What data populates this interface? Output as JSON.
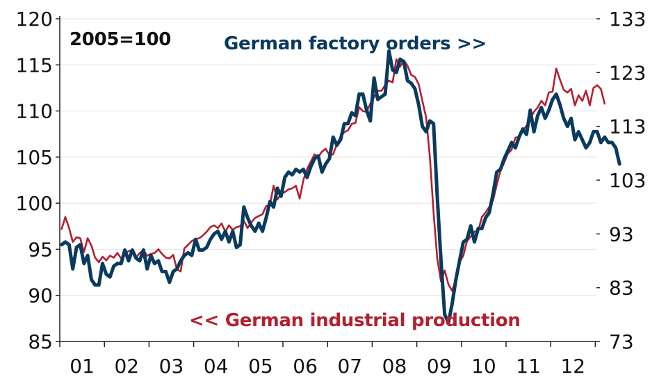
{
  "chart_data": {
    "type": "line",
    "annotations": {
      "base_note": "2005=100",
      "orders_label": "German factory orders >>",
      "ip_label": "<< German industrial production"
    },
    "x_tick_labels": [
      "01",
      "02",
      "03",
      "04",
      "05",
      "06",
      "07",
      "08",
      "09",
      "10",
      "11",
      "12"
    ],
    "x_start_year": 2001,
    "left_axis": {
      "ticks": [
        85,
        90,
        95,
        100,
        105,
        110,
        115,
        120
      ],
      "range": [
        85,
        120
      ]
    },
    "right_axis": {
      "ticks": [
        73,
        83,
        93,
        103,
        113,
        123,
        133
      ],
      "range": [
        73,
        133
      ]
    },
    "grid": "horizontal",
    "series": [
      {
        "name": "German factory orders",
        "axis": "right",
        "color": "#0b3a5f",
        "values": [
          91,
          91.5,
          91,
          86.5,
          90.5,
          91,
          87.5,
          89,
          84.5,
          83.5,
          83.5,
          87.5,
          85.5,
          85,
          87,
          87.5,
          87.5,
          90,
          88,
          90,
          88.5,
          88,
          90,
          86.5,
          89,
          87.5,
          88,
          86,
          86,
          84,
          86,
          86.5,
          88,
          89,
          89.5,
          89,
          92,
          90,
          90,
          90.5,
          92,
          93,
          93.5,
          92,
          93.5,
          91.5,
          93.5,
          90.5,
          91,
          98,
          96,
          94.5,
          93.5,
          95,
          93.5,
          96,
          99,
          98,
          101.5,
          100,
          103.5,
          104.5,
          104,
          105,
          104.5,
          105,
          103.5,
          105.5,
          107,
          107.5,
          104.5,
          106,
          107,
          111,
          109.5,
          110.5,
          113.5,
          113.5,
          115.5,
          115,
          119,
          119,
          116,
          114,
          122,
          118,
          118.5,
          119,
          127,
          123.5,
          123,
          125.5,
          125,
          121.5,
          121,
          120,
          117,
          113,
          112,
          114,
          113.5,
          100,
          88,
          78,
          76.5,
          80,
          84.5,
          88,
          91.5,
          92,
          94.5,
          91.5,
          94,
          94,
          96,
          97,
          100.5,
          104.5,
          105,
          107,
          108.5,
          110,
          109,
          111,
          112.5,
          111.5,
          116,
          112,
          115,
          116.5,
          114.5,
          116,
          118,
          119,
          117,
          114.5,
          113,
          114.5,
          110.5,
          112,
          110.5,
          109,
          110,
          112,
          112,
          110,
          111,
          110,
          110,
          109,
          106
        ]
      },
      {
        "name": "German industrial production",
        "axis": "left",
        "color": "#b22030",
        "values": [
          97.2,
          98.5,
          97.3,
          95.8,
          96.3,
          96.2,
          94.7,
          96.2,
          95.4,
          94.1,
          93.6,
          94.2,
          93.8,
          94.3,
          94.1,
          94.6,
          94,
          94.5,
          94.8,
          94.9,
          94.1,
          94.6,
          94.9,
          94.3,
          94.5,
          94.6,
          95,
          94.5,
          94.1,
          94,
          94.4,
          92.8,
          92.6,
          95.1,
          95.5,
          95.9,
          96.1,
          96.2,
          96.5,
          96.9,
          97.4,
          97.6,
          97.3,
          97.8,
          96.9,
          97.6,
          97.1,
          97.4,
          97.5,
          98.1,
          97.3,
          97.9,
          98.4,
          98.6,
          98.8,
          99.7,
          99.8,
          101.9,
          100.4,
          101,
          101.2,
          101.5,
          101.6,
          101.9,
          100.5,
          102.5,
          103.7,
          104.5,
          105.3,
          105,
          105.6,
          105.9,
          105.2,
          105.3,
          106.4,
          107.2,
          107.7,
          107.9,
          108.6,
          108.7,
          110.4,
          110,
          109.9,
          110.8,
          111.5,
          112.2,
          112.2,
          112.8,
          113.3,
          113.1,
          115.6,
          114.8,
          115.5,
          114.9,
          113.9,
          113.7,
          112.9,
          111.1,
          109.3,
          105.1,
          99,
          94,
          91.5,
          92.7,
          91.2,
          90.5,
          91.8,
          93.6,
          94.3,
          95.9,
          96.4,
          96.9,
          97,
          98.5,
          99,
          99.6,
          100.3,
          102,
          103.5,
          104.4,
          105.4,
          105.8,
          107.1,
          107.2,
          107.9,
          108.4,
          109.2,
          109.9,
          110.4,
          111.1,
          110.6,
          112,
          112.1,
          114.6,
          113.4,
          112.3,
          112,
          112.4,
          110.6,
          111.7,
          111.1,
          112.2,
          110.6,
          112.5,
          112.8,
          112.4,
          110.8
        ]
      }
    ]
  }
}
